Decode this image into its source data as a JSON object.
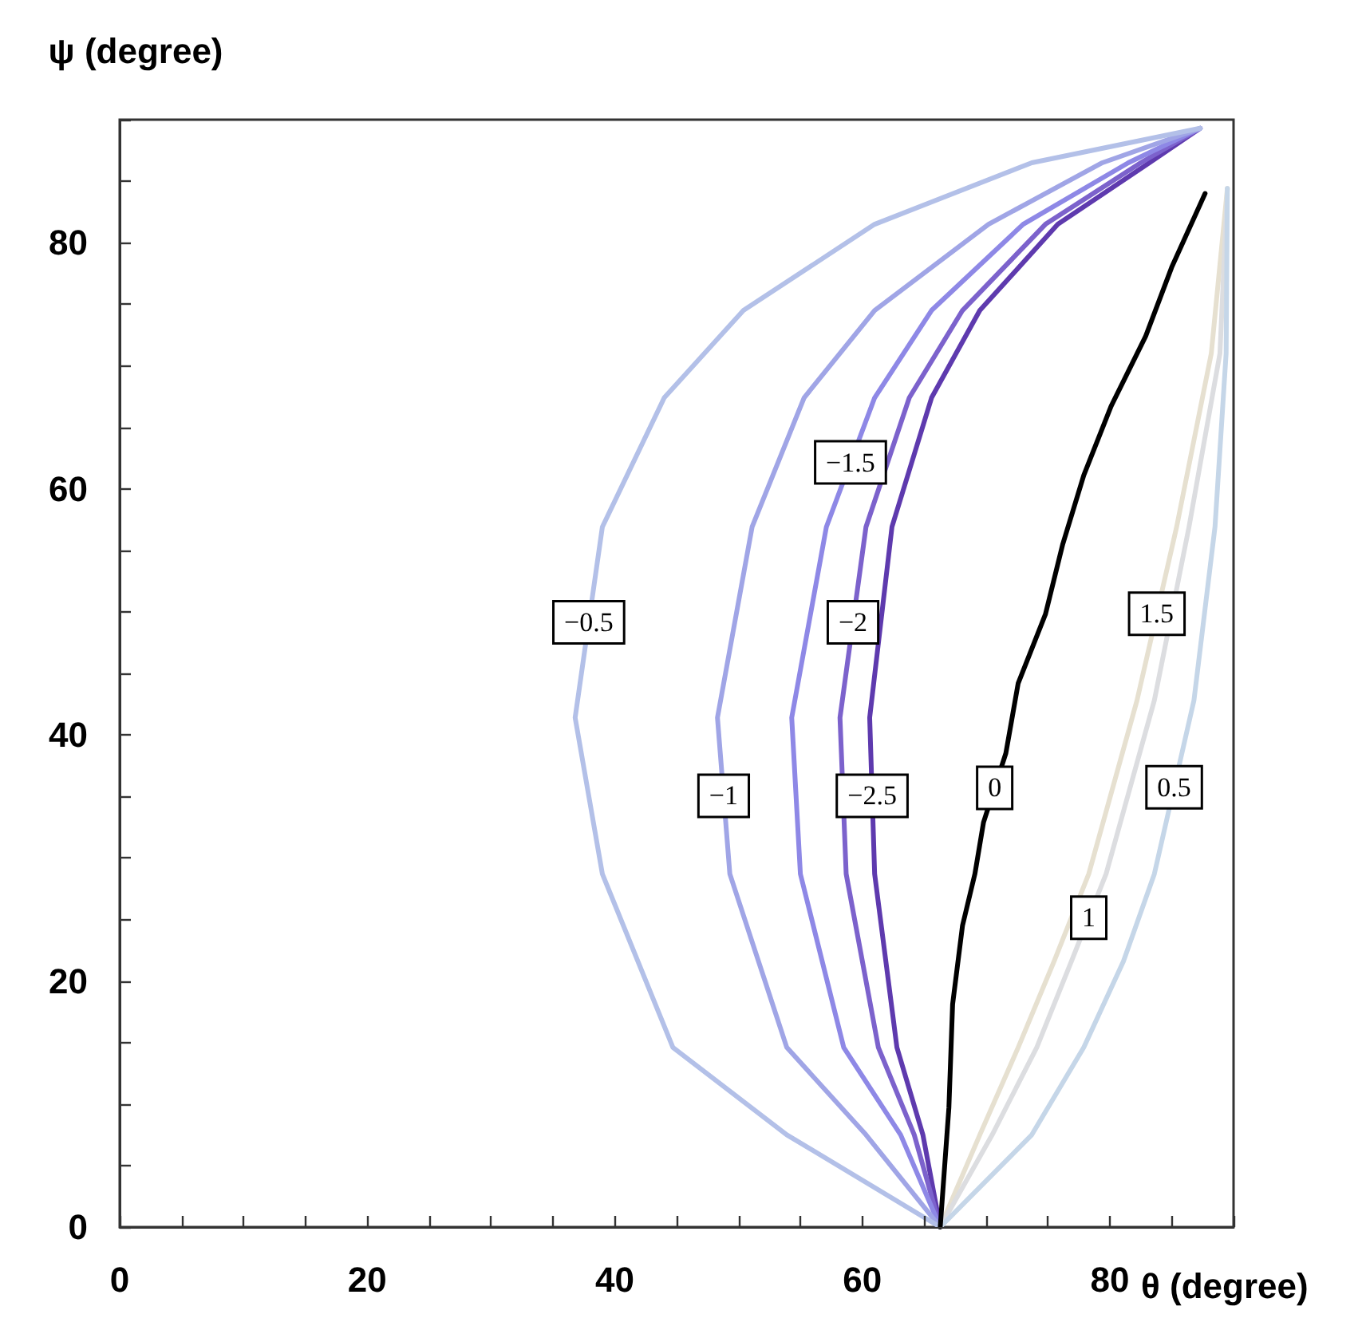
{
  "chart_data": {
    "type": "line",
    "xlabel": "θ (degree)",
    "ylabel": "ψ (degree)",
    "xlim": [
      0,
      90
    ],
    "ylim": [
      0,
      90
    ],
    "xticks": [
      0,
      {
        "value": 5,
        "label": null
      },
      {
        "value": 10,
        "label": null
      },
      {
        "value": 15,
        "label": null
      },
      20,
      {
        "value": 25,
        "label": null
      },
      {
        "value": 30,
        "label": null
      },
      {
        "value": 35,
        "label": null
      },
      40,
      {
        "value": 45,
        "label": null
      },
      {
        "value": 50,
        "label": null
      },
      {
        "value": 55,
        "label": null
      },
      60,
      {
        "value": 65,
        "label": null
      },
      {
        "value": 70,
        "label": null
      },
      {
        "value": 75,
        "label": null
      },
      80,
      {
        "value": 85,
        "label": null
      },
      {
        "value": 90,
        "label": null
      }
    ],
    "yticks": [
      0,
      {
        "value": 5,
        "label": null
      },
      {
        "value": 10,
        "label": null
      },
      {
        "value": 15,
        "label": null
      },
      20,
      {
        "value": 25,
        "label": null
      },
      {
        "value": 30,
        "label": null
      },
      {
        "value": 35,
        "label": null
      },
      40,
      {
        "value": 45,
        "label": null
      },
      {
        "value": 50,
        "label": null
      },
      {
        "value": 55,
        "label": null
      },
      60,
      {
        "value": 65,
        "label": null
      },
      {
        "value": 70,
        "label": null
      },
      {
        "value": 75,
        "label": null
      },
      80,
      {
        "value": 85,
        "label": null
      },
      {
        "value": 90,
        "label": null
      }
    ],
    "series": [
      {
        "name": "−2.5",
        "color": "#5e3aae",
        "x": [
          66.3,
          64.9,
          62.8,
          61,
          60.6,
          62.4,
          65.6,
          69.5,
          75.8,
          83.2,
          87.3
        ],
        "values": [
          0,
          7.5,
          14.6,
          28.7,
          41.4,
          56.9,
          67.4,
          74.5,
          81.5,
          86.5,
          89.3
        ]
      },
      {
        "name": "−2",
        "color": "#7c62cc",
        "x": [
          66.3,
          64.2,
          61.3,
          58.7,
          58.2,
          60.3,
          63.8,
          68.1,
          74.8,
          82.5,
          87.3
        ],
        "values": [
          0,
          7.5,
          14.6,
          28.7,
          41.4,
          56.9,
          67.4,
          74.5,
          81.5,
          86.5,
          89.3
        ]
      },
      {
        "name": "−1.5",
        "color": "#8e88e6",
        "x": [
          66.3,
          63.1,
          58.5,
          55,
          54.3,
          57.1,
          61,
          65.6,
          73,
          81.5,
          87.3
        ],
        "values": [
          0,
          7.5,
          14.6,
          28.7,
          41.4,
          56.9,
          67.4,
          74.5,
          81.5,
          86.5,
          89.3
        ]
      },
      {
        "name": "−1",
        "color": "#a0a5e6",
        "x": [
          66.3,
          60.3,
          53.9,
          49.3,
          48.3,
          51.1,
          55.3,
          61,
          70.2,
          79.4,
          87.3
        ],
        "values": [
          0,
          7.5,
          14.6,
          28.7,
          41.4,
          56.9,
          67.4,
          74.5,
          81.5,
          86.5,
          89.3
        ]
      },
      {
        "name": "−0.5",
        "color": "#b3c0e8",
        "x": [
          66.3,
          53.9,
          44.7,
          39,
          36.8,
          39,
          44,
          50.4,
          61,
          73.7,
          87.3
        ],
        "values": [
          0,
          7.5,
          14.6,
          28.7,
          41.4,
          56.9,
          67.4,
          74.5,
          81.5,
          86.5,
          89.3
        ]
      },
      {
        "name": "1.5",
        "color": "#e6e0d0",
        "x": [
          66.3,
          69.5,
          72.6,
          75.5,
          78.3,
          82.2,
          85.4,
          88.2,
          89.5
        ],
        "values": [
          0,
          7.5,
          14.6,
          21.6,
          28.7,
          42.8,
          56.9,
          71,
          84.4
        ]
      },
      {
        "name": "1",
        "color": "#dcdde0",
        "x": [
          66.3,
          70.5,
          74.1,
          76.9,
          79.7,
          83.6,
          86.4,
          88.9,
          89.5
        ],
        "values": [
          0,
          7.5,
          14.6,
          21.6,
          28.7,
          42.8,
          56.9,
          71,
          84.4
        ]
      },
      {
        "name": "0.5",
        "color": "#c5d6e8",
        "x": [
          66.3,
          73.7,
          77.9,
          81.1,
          83.6,
          86.8,
          88.5,
          89.4,
          89.5
        ],
        "values": [
          0,
          7.5,
          14.6,
          21.6,
          28.7,
          42.8,
          56.9,
          71,
          84.4
        ]
      },
      {
        "name": "0",
        "color": "#000000",
        "x": [
          66.3,
          67,
          67.3,
          68.1,
          69.1,
          69.8,
          71.6,
          72.6,
          74.8,
          76.2,
          77.9,
          80.1,
          82.9,
          85,
          87.7
        ],
        "values": [
          0,
          9.7,
          18.1,
          24.5,
          28.7,
          32.9,
          38.5,
          44.2,
          49.8,
          55.5,
          61.1,
          66.7,
          72.4,
          78,
          84
        ]
      }
    ]
  }
}
